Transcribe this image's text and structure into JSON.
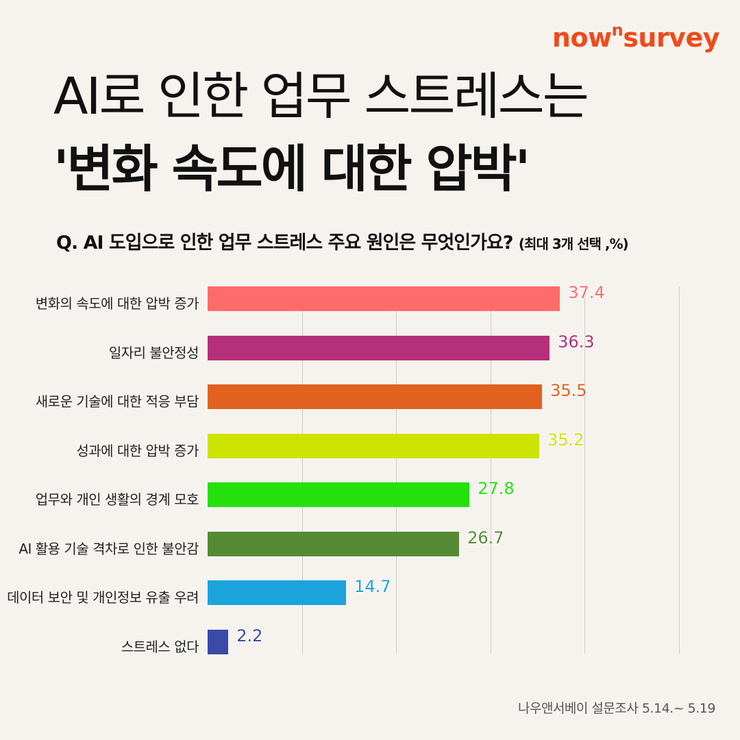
{
  "brand": {
    "name_pre": "now",
    "name_sup": "n",
    "name_post": "survey"
  },
  "headline": {
    "line1": "AI로 인한 업무 스트레스는",
    "line2": "'변화 속도에 대한 압박'"
  },
  "question": {
    "text": "Q. AI 도입으로 인한 업무 스트레스 주요 원인은 무엇인가요?",
    "note": "(최대 3개 선택 ,%)"
  },
  "chart_data": {
    "type": "bar",
    "orientation": "horizontal",
    "categories": [
      "변화의 속도에 대한 압박 증가",
      "일자리 불안정성",
      "새로운 기술에 대한 적응 부담",
      "성과에 대한 압박 증가",
      "업무와 개인 생활의 경계 모호",
      "AI 활용 기술 격차로 인한 불안감",
      "데이터 보안 및 개인정보 유출 우려",
      "스트레스 없다"
    ],
    "values": [
      37.4,
      36.3,
      35.5,
      35.2,
      27.8,
      26.7,
      14.7,
      2.2
    ],
    "value_labels": [
      "37.4",
      "36.3",
      "35.5",
      "35.2",
      "27.8",
      "26.7",
      "14.7",
      "2.2"
    ],
    "colors": [
      "#ff6b6b",
      "#b5307a",
      "#e0621e",
      "#cde400",
      "#25e00a",
      "#568a36",
      "#1ba3dc",
      "#3a4aa8"
    ],
    "label_colors": [
      "#ff6b6b",
      "#b5307a",
      "#e0621e",
      "#cde400",
      "#25e00a",
      "#568a36",
      "#1ba3dc",
      "#3a4aa8"
    ],
    "xlim": [
      0,
      50
    ],
    "grid": true
  },
  "footer": "나우앤서베이 설문조사 5.14.~ 5.19"
}
